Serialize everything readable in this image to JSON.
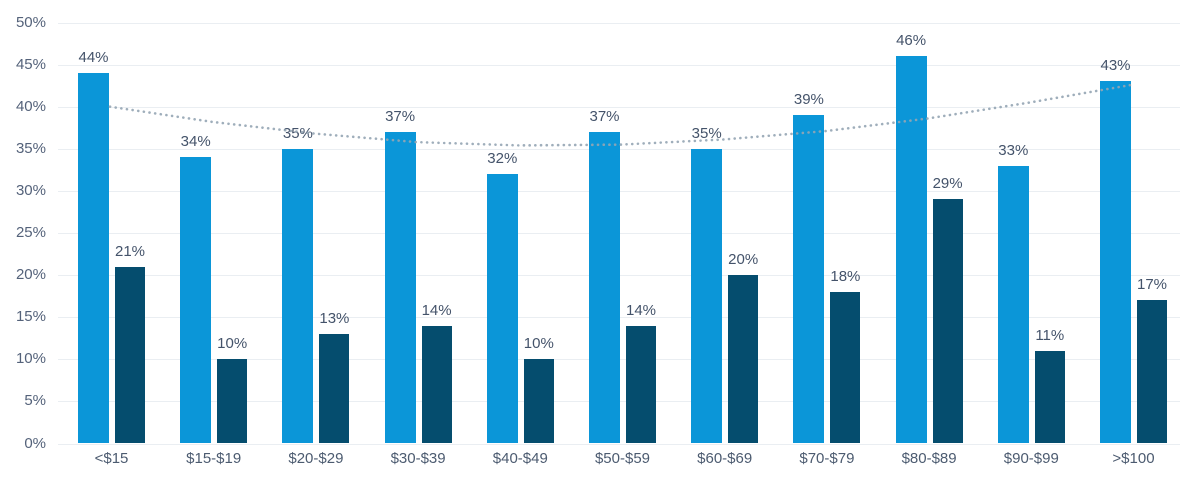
{
  "colors": {
    "background": "#FFFFFF",
    "gridline": "#EAEEF2",
    "axis_label": "#54627A",
    "value_label": "#44536A",
    "light_series": "#0B96D8",
    "dark_series": "#054D6E",
    "trendline": "#95A5B4"
  },
  "chart_data": {
    "type": "bar",
    "title": "",
    "xlabel": "",
    "ylabel": "",
    "legend": "none",
    "grid": true,
    "categories": [
      "<$15",
      "$15-$19",
      "$20-$29",
      "$30-$39",
      "$40-$49",
      "$50-$59",
      "$60-$69",
      "$70-$79",
      "$80-$89",
      "$90-$99",
      ">$100"
    ],
    "series": [
      {
        "name": "light-blue-series",
        "color": "#0B96D8",
        "values": [
          44,
          34,
          35,
          37,
          32,
          37,
          35,
          39,
          46,
          33,
          43
        ],
        "labels": [
          "44%",
          "34%",
          "35%",
          "37%",
          "32%",
          "37%",
          "35%",
          "39%",
          "46%",
          "33%",
          "43%"
        ]
      },
      {
        "name": "dark-navy-series",
        "color": "#054D6E",
        "values": [
          21,
          10,
          13,
          14,
          10,
          14,
          20,
          18,
          29,
          11,
          17
        ],
        "labels": [
          "21%",
          "10%",
          "13%",
          "14%",
          "10%",
          "14%",
          "20%",
          "18%",
          "29%",
          "11%",
          "17%"
        ]
      }
    ],
    "y_axis": {
      "min": 0,
      "max": 50,
      "step": 5,
      "ticks": [
        "0%",
        "5%",
        "10%",
        "15%",
        "20%",
        "25%",
        "30%",
        "35%",
        "40%",
        "45%",
        "50%"
      ]
    },
    "trendline": {
      "attached_to": "light-blue-series",
      "style": "dotted",
      "color": "#95A5B4",
      "values": [
        40.0,
        38.2,
        36.8,
        35.8,
        35.4,
        35.5,
        36.1,
        37.1,
        38.6,
        40.5,
        42.6
      ]
    }
  }
}
